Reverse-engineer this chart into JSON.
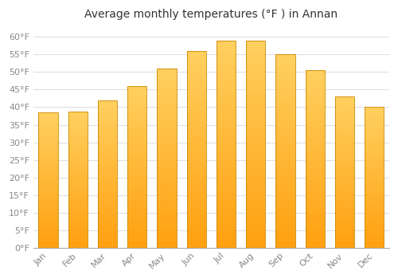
{
  "title": "Average monthly temperatures (°F ) in Annan",
  "months": [
    "Jan",
    "Feb",
    "Mar",
    "Apr",
    "May",
    "Jun",
    "Jul",
    "Aug",
    "Sep",
    "Oct",
    "Nov",
    "Dec"
  ],
  "values": [
    38.5,
    38.7,
    42.0,
    46.0,
    51.0,
    56.0,
    59.0,
    59.0,
    55.0,
    50.5,
    43.0,
    40.0
  ],
  "bar_color_top": "#FFD060",
  "bar_color_bottom": "#FFA010",
  "bar_border_color": "#CC8800",
  "background_color": "#FFFFFF",
  "plot_bg_color": "#FFFFFF",
  "grid_color": "#E0E0E0",
  "ylim": [
    0,
    63
  ],
  "yticks": [
    0,
    5,
    10,
    15,
    20,
    25,
    30,
    35,
    40,
    45,
    50,
    55,
    60
  ],
  "ytick_labels": [
    "0°F",
    "5°F",
    "10°F",
    "15°F",
    "20°F",
    "25°F",
    "30°F",
    "35°F",
    "40°F",
    "45°F",
    "50°F",
    "55°F",
    "60°F"
  ],
  "title_fontsize": 10,
  "tick_fontsize": 8,
  "font_color": "#888888"
}
